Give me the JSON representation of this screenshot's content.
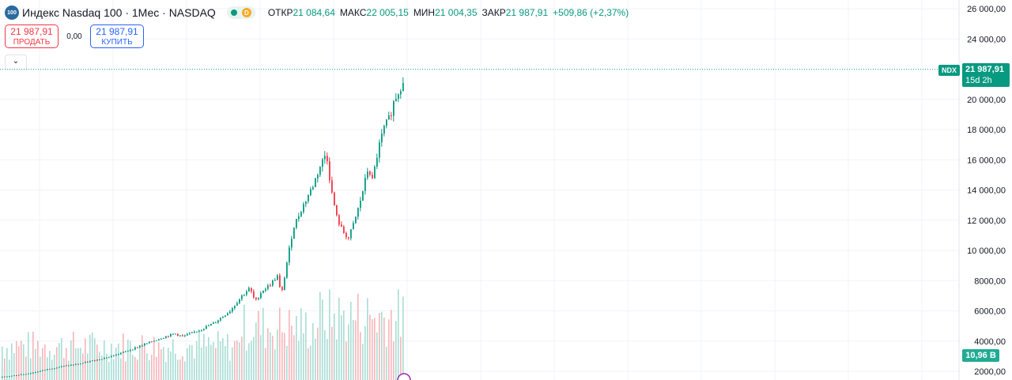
{
  "header": {
    "logo_text": "100",
    "title": "Индекс Nasdaq 100 · 1Мес · NASDAQ",
    "session_badge": "D",
    "ohlc": [
      {
        "label": "ОТКР",
        "value": "21 084,64"
      },
      {
        "label": "МАКС",
        "value": "22 005,15"
      },
      {
        "label": "МИН",
        "value": "21 004,35"
      },
      {
        "label": "ЗАКР",
        "value": "21 987,91"
      }
    ],
    "change": "+509,86 (+2,37%)"
  },
  "trade": {
    "sell_price": "21 987,91",
    "sell_label": "ПРОДАТЬ",
    "spread": "0,00",
    "buy_price": "21 987,91",
    "buy_label": "КУПИТЬ"
  },
  "collapse_icon": "chevron-down-icon",
  "price_tag": {
    "symbol": "NDX",
    "price": "21 987,91",
    "countdown": "15d 2h"
  },
  "volume_tag": "10,96 B",
  "colors": {
    "up": "#089981",
    "down": "#f23645",
    "up_volume": "#a8ddd3",
    "down_volume": "#f7b5b9",
    "grid": "#f0f3fa"
  },
  "chart_data": {
    "type": "candlestick",
    "symbol": "NDX",
    "interval": "1 month",
    "y_axis": {
      "range": [
        1500,
        26500
      ],
      "ticks": [
        2000,
        4000,
        6000,
        8000,
        10000,
        12000,
        14000,
        16000,
        18000,
        20000,
        24000,
        26000
      ],
      "tick_labels": [
        "2000,00",
        "4000,00",
        "6000,00",
        "8000,00",
        "10 000,00",
        "12 000,00",
        "14 000,00",
        "16 000,00",
        "18 000,00",
        "20 000,00",
        "24 000,00",
        "26 000,00"
      ]
    },
    "last_price": 21987.91,
    "grid": true,
    "price_path": [
      [
        0,
        1600
      ],
      [
        20,
        1750
      ],
      [
        40,
        1900
      ],
      [
        60,
        2150
      ],
      [
        80,
        2350
      ],
      [
        100,
        2500
      ],
      [
        120,
        2750
      ],
      [
        140,
        3000
      ],
      [
        160,
        3350
      ],
      [
        180,
        3750
      ],
      [
        200,
        4150
      ],
      [
        220,
        4500
      ],
      [
        230,
        4300
      ],
      [
        250,
        4700
      ],
      [
        270,
        5200
      ],
      [
        290,
        6000
      ],
      [
        305,
        7000
      ],
      [
        315,
        7500
      ],
      [
        322,
        6600
      ],
      [
        330,
        7300
      ],
      [
        340,
        7700
      ],
      [
        350,
        8300
      ],
      [
        355,
        7000
      ],
      [
        362,
        9200
      ],
      [
        370,
        11500
      ],
      [
        380,
        12700
      ],
      [
        395,
        14300
      ],
      [
        405,
        15700
      ],
      [
        412,
        16500
      ],
      [
        418,
        14000
      ],
      [
        425,
        12200
      ],
      [
        432,
        11300
      ],
      [
        440,
        10800
      ],
      [
        448,
        12000
      ],
      [
        455,
        13300
      ],
      [
        465,
        15500
      ],
      [
        470,
        14600
      ],
      [
        478,
        16800
      ],
      [
        485,
        18100
      ],
      [
        492,
        18800
      ],
      [
        498,
        20000
      ],
      [
        503,
        20500
      ],
      [
        508,
        21084
      ],
      [
        511,
        21988
      ]
    ],
    "volume_scale_max": 10.96
  }
}
